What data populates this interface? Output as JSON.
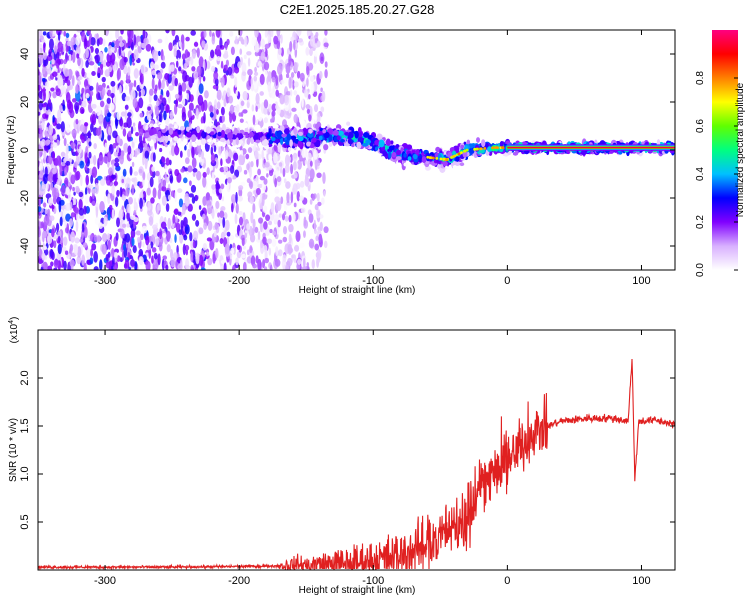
{
  "title": "C2E1.2025.185.20.27.G28",
  "chart_data": [
    {
      "type": "heatmap",
      "xlabel": "Height of straight line (km)",
      "ylabel": "Frequency (Hz)",
      "xlim": [
        -350,
        125
      ],
      "ylim": [
        -50,
        50
      ],
      "xticks": [
        -300,
        -200,
        -100,
        0,
        100
      ],
      "yticks": [
        -40,
        -20,
        0,
        20,
        40
      ],
      "colorbar": {
        "label": "Normalized spectral amplitude",
        "range": [
          0,
          1
        ],
        "ticks": [
          "0.0",
          "0.2",
          "0.4",
          "0.6",
          "0.8"
        ],
        "colors": [
          "#ffffff",
          "#d8b0ff",
          "#8000ff",
          "#0000ff",
          "#00c0ff",
          "#00ff80",
          "#60ff00",
          "#ffff00",
          "#ff8000",
          "#ff0000",
          "#ff0080"
        ]
      },
      "ridge": [
        {
          "x": -270,
          "y": 7
        },
        {
          "x": -240,
          "y": 7
        },
        {
          "x": -200,
          "y": 6
        },
        {
          "x": -160,
          "y": 5
        },
        {
          "x": -120,
          "y": 6
        },
        {
          "x": -100,
          "y": 3
        },
        {
          "x": -80,
          "y": -2
        },
        {
          "x": -60,
          "y": -3
        },
        {
          "x": -45,
          "y": -4
        },
        {
          "x": -30,
          "y": 0
        },
        {
          "x": -10,
          "y": 1
        },
        {
          "x": 0,
          "y": 1
        },
        {
          "x": 125,
          "y": 1
        }
      ],
      "grid": false
    },
    {
      "type": "line",
      "xlabel": "Height of straight line (km)",
      "ylabel": "SNR (10 * v/v)",
      "yscale_label": "(x10",
      "yscale_exp": "4",
      "yscale_close": ")",
      "xlim": [
        -350,
        125
      ],
      "ylim": [
        0,
        2.5
      ],
      "xticks": [
        -300,
        -200,
        -100,
        0,
        100
      ],
      "yticks": [
        "0.5",
        "1.0",
        "1.5",
        "2.0"
      ],
      "color": "#e02020",
      "series": [
        {
          "values": [
            {
              "x": -350,
              "y": 0.03
            },
            {
              "x": -250,
              "y": 0.03
            },
            {
              "x": -180,
              "y": 0.04
            },
            {
              "x": -150,
              "y": 0.05
            },
            {
              "x": -120,
              "y": 0.07
            },
            {
              "x": -100,
              "y": 0.1
            },
            {
              "x": -80,
              "y": 0.15
            },
            {
              "x": -60,
              "y": 0.25
            },
            {
              "x": -40,
              "y": 0.4
            },
            {
              "x": -30,
              "y": 0.6
            },
            {
              "x": -20,
              "y": 0.9
            },
            {
              "x": -10,
              "y": 1.0
            },
            {
              "x": 0,
              "y": 1.1
            },
            {
              "x": 10,
              "y": 1.3
            },
            {
              "x": 20,
              "y": 1.45
            },
            {
              "x": 40,
              "y": 1.55
            },
            {
              "x": 60,
              "y": 1.58
            },
            {
              "x": 80,
              "y": 1.58
            },
            {
              "x": 90,
              "y": 1.55
            },
            {
              "x": 93,
              "y": 2.2
            },
            {
              "x": 95,
              "y": 0.95
            },
            {
              "x": 98,
              "y": 1.55
            },
            {
              "x": 110,
              "y": 1.56
            },
            {
              "x": 125,
              "y": 1.52
            }
          ]
        }
      ],
      "grid": false
    }
  ]
}
